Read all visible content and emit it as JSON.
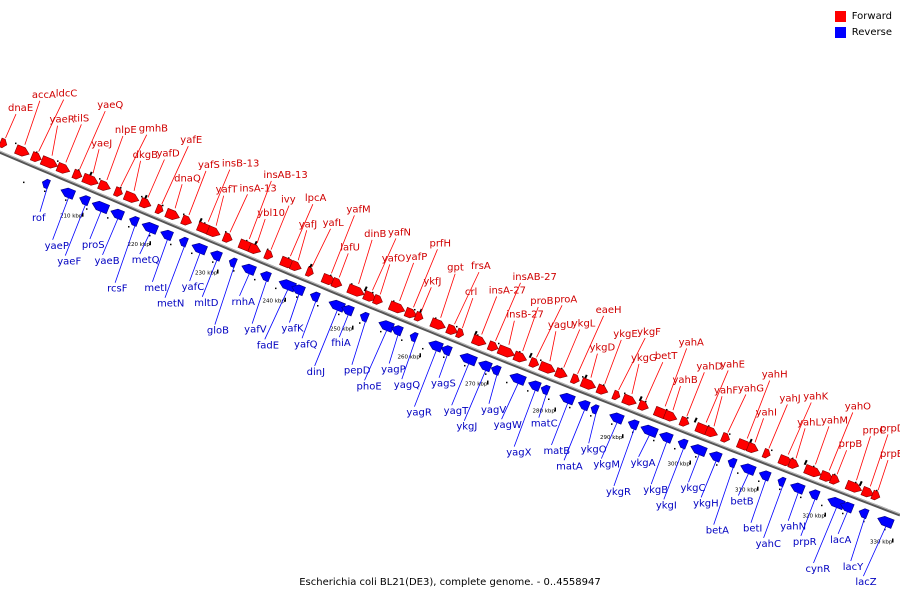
{
  "legend": {
    "forward_label": "Forward",
    "reverse_label": "Reverse",
    "forward_color": "#ff0000",
    "reverse_color": "#0000ff"
  },
  "caption": "Escherichia coli BL21(DE3), complete genome. - 0..4558947",
  "scale_ticks": [
    "210 kbp",
    "220 kbp",
    "230 kbp",
    "240 kbp",
    "250 kbp",
    "260 kbp",
    "270 kbp",
    "280 kbp",
    "290 kbp",
    "300 kbp",
    "310 kbp",
    "320 kbp",
    "330 kbp"
  ],
  "genes": [
    {
      "name": "dnaE",
      "strand": "forward"
    },
    {
      "name": "accA",
      "strand": "forward"
    },
    {
      "name": "ldcC",
      "strand": "forward"
    },
    {
      "name": "yaeR",
      "strand": "forward"
    },
    {
      "name": "tilS",
      "strand": "forward"
    },
    {
      "name": "rof",
      "strand": "reverse"
    },
    {
      "name": "yaeP",
      "strand": "reverse"
    },
    {
      "name": "yaeQ",
      "strand": "forward"
    },
    {
      "name": "yaeJ",
      "strand": "forward"
    },
    {
      "name": "nlpE",
      "strand": "forward"
    },
    {
      "name": "gmhB",
      "strand": "forward"
    },
    {
      "name": "dkgB",
      "strand": "forward"
    },
    {
      "name": "yafD",
      "strand": "forward"
    },
    {
      "name": "yafE",
      "strand": "forward"
    },
    {
      "name": "dnaQ",
      "strand": "forward"
    },
    {
      "name": "yafS",
      "strand": "forward"
    },
    {
      "name": "insB-13",
      "strand": "forward"
    },
    {
      "name": "yafT",
      "strand": "forward"
    },
    {
      "name": "insA-13",
      "strand": "forward"
    },
    {
      "name": "insAB-13",
      "strand": "forward"
    },
    {
      "name": "ybl10",
      "strand": "forward"
    },
    {
      "name": "ivy",
      "strand": "forward"
    },
    {
      "name": "lpcA",
      "strand": "forward"
    },
    {
      "name": "yafJ",
      "strand": "forward"
    },
    {
      "name": "yafL",
      "strand": "forward"
    },
    {
      "name": "yafM",
      "strand": "forward"
    },
    {
      "name": "lafU",
      "strand": "forward"
    },
    {
      "name": "dinB",
      "strand": "forward"
    },
    {
      "name": "yafN",
      "strand": "forward"
    },
    {
      "name": "yafO",
      "strand": "forward"
    },
    {
      "name": "yafP",
      "strand": "forward"
    },
    {
      "name": "prfH",
      "strand": "forward"
    },
    {
      "name": "ykfJ",
      "strand": "forward"
    },
    {
      "name": "gpt",
      "strand": "forward"
    },
    {
      "name": "frsA",
      "strand": "forward"
    },
    {
      "name": "crl",
      "strand": "forward"
    },
    {
      "name": "insA-27",
      "strand": "forward"
    },
    {
      "name": "insAB-27",
      "strand": "forward"
    },
    {
      "name": "insB-27",
      "strand": "forward"
    },
    {
      "name": "proB",
      "strand": "forward"
    },
    {
      "name": "proA",
      "strand": "forward"
    },
    {
      "name": "yagU",
      "strand": "forward"
    },
    {
      "name": "ykgL",
      "strand": "forward"
    },
    {
      "name": "eaeH",
      "strand": "forward"
    },
    {
      "name": "ykgD",
      "strand": "forward"
    },
    {
      "name": "ykgE",
      "strand": "forward"
    },
    {
      "name": "ykgF",
      "strand": "forward"
    },
    {
      "name": "ykgG",
      "strand": "forward"
    },
    {
      "name": "betT",
      "strand": "forward"
    },
    {
      "name": "yahA",
      "strand": "forward"
    },
    {
      "name": "yahB",
      "strand": "forward"
    },
    {
      "name": "yahD",
      "strand": "forward"
    },
    {
      "name": "yahE",
      "strand": "forward"
    },
    {
      "name": "yahF",
      "strand": "forward"
    },
    {
      "name": "yahG",
      "strand": "forward"
    },
    {
      "name": "yahH",
      "strand": "forward"
    },
    {
      "name": "yahI",
      "strand": "forward"
    },
    {
      "name": "yahJ",
      "strand": "forward"
    },
    {
      "name": "yahK",
      "strand": "forward"
    },
    {
      "name": "yahL",
      "strand": "forward"
    },
    {
      "name": "yahM",
      "strand": "forward"
    },
    {
      "name": "yahO",
      "strand": "forward"
    },
    {
      "name": "prpB",
      "strand": "forward"
    },
    {
      "name": "prpC",
      "strand": "forward"
    },
    {
      "name": "prpD",
      "strand": "forward"
    },
    {
      "name": "prpE",
      "strand": "forward"
    },
    {
      "name": "yaeF",
      "strand": "reverse"
    },
    {
      "name": "proS",
      "strand": "reverse"
    },
    {
      "name": "yaeB",
      "strand": "reverse"
    },
    {
      "name": "rcsF",
      "strand": "reverse"
    },
    {
      "name": "metQ",
      "strand": "reverse"
    },
    {
      "name": "metI",
      "strand": "reverse"
    },
    {
      "name": "metN",
      "strand": "reverse"
    },
    {
      "name": "yafC",
      "strand": "reverse"
    },
    {
      "name": "mltD",
      "strand": "reverse"
    },
    {
      "name": "gloB",
      "strand": "reverse"
    },
    {
      "name": "rnhA",
      "strand": "reverse"
    },
    {
      "name": "yafV",
      "strand": "reverse"
    },
    {
      "name": "fadE",
      "strand": "reverse"
    },
    {
      "name": "yafK",
      "strand": "reverse"
    },
    {
      "name": "yafQ",
      "strand": "reverse"
    },
    {
      "name": "dinJ",
      "strand": "reverse"
    },
    {
      "name": "fhiA",
      "strand": "reverse"
    },
    {
      "name": "pepD",
      "strand": "reverse"
    },
    {
      "name": "phoE",
      "strand": "reverse"
    },
    {
      "name": "yagP",
      "strand": "reverse"
    },
    {
      "name": "yagQ",
      "strand": "reverse"
    },
    {
      "name": "yagR",
      "strand": "reverse"
    },
    {
      "name": "yagS",
      "strand": "reverse"
    },
    {
      "name": "yagT",
      "strand": "reverse"
    },
    {
      "name": "ykgJ",
      "strand": "reverse"
    },
    {
      "name": "yagV",
      "strand": "reverse"
    },
    {
      "name": "yagW",
      "strand": "reverse"
    },
    {
      "name": "yagX",
      "strand": "reverse"
    },
    {
      "name": "matC",
      "strand": "reverse"
    },
    {
      "name": "matB",
      "strand": "reverse"
    },
    {
      "name": "matA",
      "strand": "reverse"
    },
    {
      "name": "ykgO",
      "strand": "reverse"
    },
    {
      "name": "ykgM",
      "strand": "reverse"
    },
    {
      "name": "ykgR",
      "strand": "reverse"
    },
    {
      "name": "ykgA",
      "strand": "reverse"
    },
    {
      "name": "ykgB",
      "strand": "reverse"
    },
    {
      "name": "ykgI",
      "strand": "reverse"
    },
    {
      "name": "ykgC",
      "strand": "reverse"
    },
    {
      "name": "ykgH",
      "strand": "reverse"
    },
    {
      "name": "betA",
      "strand": "reverse"
    },
    {
      "name": "betB",
      "strand": "reverse"
    },
    {
      "name": "betI",
      "strand": "reverse"
    },
    {
      "name": "yahC",
      "strand": "reverse"
    },
    {
      "name": "yahN",
      "strand": "reverse"
    },
    {
      "name": "prpR",
      "strand": "reverse"
    },
    {
      "name": "cynR",
      "strand": "reverse"
    },
    {
      "name": "lacA",
      "strand": "reverse"
    },
    {
      "name": "lacY",
      "strand": "reverse"
    },
    {
      "name": "lacZ",
      "strand": "reverse"
    }
  ]
}
